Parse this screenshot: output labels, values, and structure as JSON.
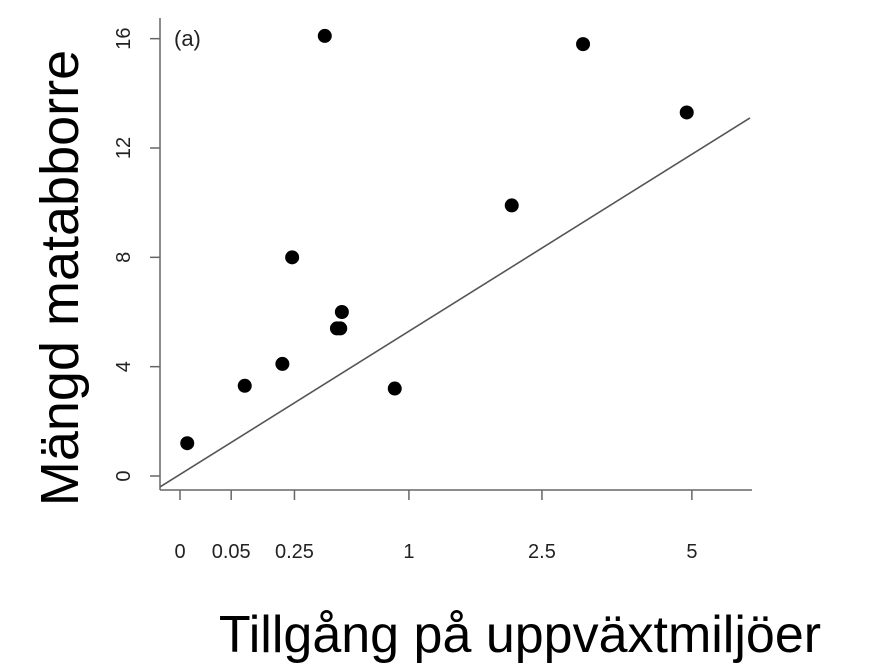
{
  "chart_data": {
    "type": "scatter",
    "panel_label": "(a)",
    "xlabel": "Tillgång på uppväxtmiljöer",
    "ylabel": "Mängd matabborre",
    "x_scale": "sqrt",
    "xlim": [
      0,
      6.2
    ],
    "ylim": [
      0,
      16.5
    ],
    "x_ticks": [
      {
        "value": 0,
        "label": "0"
      },
      {
        "value": 0.05,
        "label": "0.05"
      },
      {
        "value": 0.25,
        "label": "0.25"
      },
      {
        "value": 1,
        "label": "1"
      },
      {
        "value": 2.5,
        "label": "2.5"
      },
      {
        "value": 5,
        "label": "5"
      }
    ],
    "y_ticks": [
      {
        "value": 0,
        "label": "0"
      },
      {
        "value": 4,
        "label": "4"
      },
      {
        "value": 8,
        "label": "8"
      },
      {
        "value": 12,
        "label": "12"
      },
      {
        "value": 16,
        "label": "16"
      }
    ],
    "points": [
      {
        "x": 0.001,
        "y": 1.2
      },
      {
        "x": 0.08,
        "y": 3.3
      },
      {
        "x": 0.2,
        "y": 4.1
      },
      {
        "x": 0.24,
        "y": 8.0
      },
      {
        "x": 0.4,
        "y": 16.1
      },
      {
        "x": 0.47,
        "y": 5.4
      },
      {
        "x": 0.49,
        "y": 5.4
      },
      {
        "x": 0.5,
        "y": 6.0
      },
      {
        "x": 0.88,
        "y": 3.2
      },
      {
        "x": 2.1,
        "y": 9.9
      },
      {
        "x": 3.1,
        "y": 15.8
      },
      {
        "x": 4.9,
        "y": 13.3
      }
    ],
    "fit_line": {
      "x": [
        0,
        6.2
      ],
      "y": [
        -0.4,
        13.1
      ]
    },
    "grid": false,
    "legend": "none",
    "colors": {
      "points": "#000000",
      "line": "#555555",
      "axis": "#666666"
    }
  }
}
